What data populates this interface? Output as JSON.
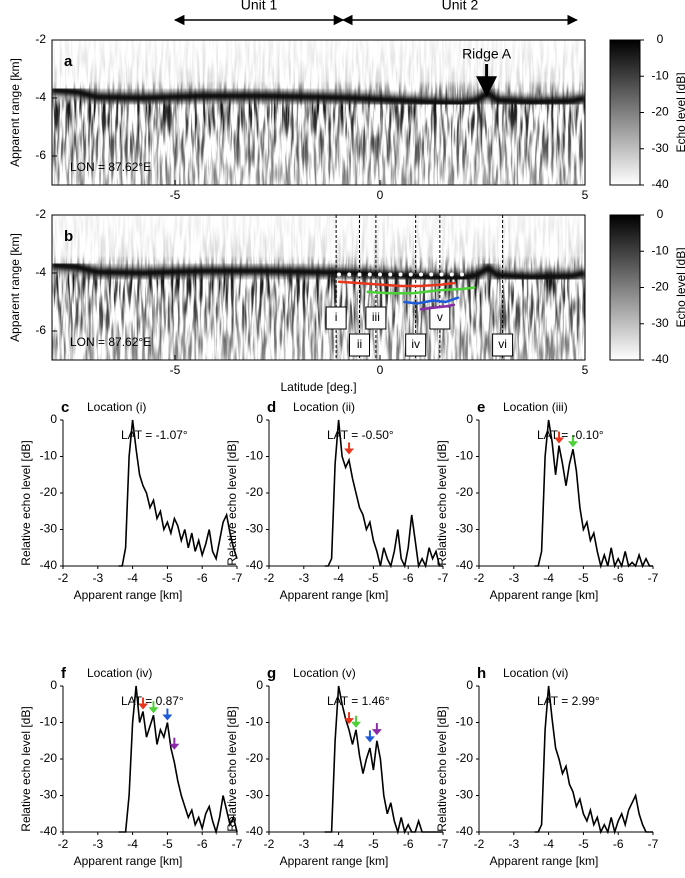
{
  "chart_data": [
    {
      "type": "radargram",
      "panel": "a",
      "ylabel": "Apparent range [km]",
      "annotation": "LON = 87.62°E",
      "xlim": [
        -8,
        5
      ],
      "ylim": [
        -2,
        -7
      ],
      "xticks": [
        -5,
        0,
        5
      ],
      "yticks": [
        -2,
        -4,
        -6
      ],
      "ridge": {
        "label": "Ridge A",
        "x": 2.6,
        "y": -3.9
      },
      "units": [
        {
          "label": "Unit 1",
          "range": [
            -5,
            -0.9
          ]
        },
        {
          "label": "Unit 2",
          "range": [
            -0.9,
            4.8
          ]
        }
      ],
      "colorbar": {
        "label": "Echo level [dB]",
        "lim": [
          0,
          -40
        ],
        "ticks": [
          0,
          -10,
          -20,
          -30,
          -40
        ]
      }
    },
    {
      "type": "radargram",
      "panel": "b",
      "ylabel": "Apparent range [km]",
      "xlabel": "Latitude [deg.]",
      "annotation": "LON = 87.62°E",
      "xlim": [
        -8,
        5
      ],
      "ylim": [
        -2,
        -7
      ],
      "xticks": [
        -5,
        0,
        5
      ],
      "yticks": [
        -2,
        -4,
        -6
      ],
      "lines": [
        -1.07,
        -0.5,
        -0.1,
        0.87,
        1.46,
        2.99
      ],
      "line_labels": [
        "i",
        "ii",
        "iii",
        "iv",
        "v",
        "vi"
      ],
      "series": [
        {
          "color": "#ffffff",
          "x": [
            -1.0,
            -0.75,
            -0.5,
            -0.25,
            0,
            0.25,
            0.5,
            0.75,
            1,
            1.25,
            1.5,
            1.75,
            2
          ],
          "values": [
            -4.05,
            -4.05,
            -4.05,
            -4.05,
            -4.05,
            -4.05,
            -4.05,
            -4.05,
            -4.05,
            -4.05,
            -4.05,
            -4.05,
            -4.05
          ]
        },
        {
          "color": "#e8361c",
          "x": [
            -1.0,
            -0.5,
            0,
            0.5,
            1,
            1.5,
            1.8
          ],
          "values": [
            -4.3,
            -4.35,
            -4.4,
            -4.45,
            -4.45,
            -4.4,
            -4.35
          ]
        },
        {
          "color": "#4cd137",
          "x": [
            -0.3,
            0.2,
            0.8,
            1.4,
            2.0,
            2.3
          ],
          "values": [
            -4.65,
            -4.7,
            -4.7,
            -4.6,
            -4.55,
            -4.5
          ]
        },
        {
          "color": "#1d5bd8",
          "x": [
            0.6,
            0.9,
            1.3,
            1.6,
            1.9
          ],
          "values": [
            -5.0,
            -5.05,
            -4.95,
            -5.0,
            -4.85
          ]
        },
        {
          "color": "#8a2aa8",
          "x": [
            1.0,
            1.3,
            1.6,
            1.8
          ],
          "values": [
            -5.25,
            -5.2,
            -5.15,
            -5.1
          ]
        }
      ],
      "colorbar": {
        "label": "Echo level [dB]",
        "lim": [
          0,
          -40
        ],
        "ticks": [
          0,
          -10,
          -20,
          -30,
          -40
        ]
      }
    },
    {
      "type": "line",
      "panel": "c",
      "title": "Location (i)",
      "annotation": "LAT = -1.07°",
      "xlabel": "Apparent range [km]",
      "ylabel": "Relative echo level [dB]",
      "xlim": [
        -2,
        -7
      ],
      "ylim": [
        -40,
        0
      ],
      "xticks": [
        -2,
        -3,
        -4,
        -5,
        -6,
        -7
      ],
      "yticks": [
        0,
        -10,
        -20,
        -30,
        -40
      ],
      "color": "#000000",
      "x": [
        -3.6,
        -3.7,
        -3.8,
        -3.9,
        -4.0,
        -4.1,
        -4.2,
        -4.3,
        -4.4,
        -4.5,
        -4.6,
        -4.7,
        -4.8,
        -4.9,
        -5.0,
        -5.1,
        -5.2,
        -5.3,
        -5.4,
        -5.5,
        -5.6,
        -5.7,
        -5.8,
        -5.9,
        -6.0,
        -6.1,
        -6.2,
        -6.3,
        -6.4,
        -6.5,
        -6.6,
        -6.7,
        -6.8,
        -6.9,
        -7.0
      ],
      "values": [
        -40,
        -40,
        -35,
        -10,
        0,
        -8,
        -15,
        -18,
        -20,
        -24,
        -22,
        -27,
        -25,
        -30,
        -28,
        -31,
        -27,
        -29,
        -33,
        -30,
        -35,
        -31,
        -36,
        -33,
        -37,
        -34,
        -30,
        -36,
        -38,
        -33,
        -28,
        -26,
        -31,
        -35,
        -38
      ],
      "arrows": []
    },
    {
      "type": "line",
      "panel": "d",
      "title": "Location (ii)",
      "annotation": "LAT = -0.50°",
      "xlabel": "Apparent range [km]",
      "ylabel": "Relative echo level [dB]",
      "xlim": [
        -2,
        -7
      ],
      "ylim": [
        -40,
        0
      ],
      "xticks": [
        -2,
        -3,
        -4,
        -5,
        -6,
        -7
      ],
      "yticks": [
        0,
        -10,
        -20,
        -30,
        -40
      ],
      "color": "#000000",
      "x": [
        -3.6,
        -3.7,
        -3.8,
        -3.9,
        -4.0,
        -4.1,
        -4.2,
        -4.3,
        -4.4,
        -4.5,
        -4.6,
        -4.7,
        -4.8,
        -4.9,
        -5.0,
        -5.1,
        -5.2,
        -5.3,
        -5.4,
        -5.5,
        -5.6,
        -5.7,
        -5.8,
        -5.9,
        -6.0,
        -6.1,
        -6.2,
        -6.3,
        -6.4,
        -6.5,
        -6.6,
        -6.7,
        -6.8,
        -6.9,
        -7.0
      ],
      "values": [
        -40,
        -40,
        -38,
        -12,
        0,
        -10,
        -13,
        -11,
        -16,
        -20,
        -24,
        -26,
        -30,
        -28,
        -33,
        -36,
        -40,
        -35,
        -38,
        -40,
        -36,
        -30,
        -38,
        -40,
        -35,
        -26,
        -33,
        -40,
        -38,
        -40,
        -35,
        -38,
        -36,
        -40,
        -40
      ],
      "arrows": [
        {
          "x": -4.3,
          "y": -10,
          "color": "#e8361c"
        }
      ]
    },
    {
      "type": "line",
      "panel": "e",
      "title": "Location (iii)",
      "annotation": "LAT = -0.10°",
      "xlabel": "Apparent range [km]",
      "ylabel": "Relative echo level [dB]",
      "xlim": [
        -2,
        -7
      ],
      "ylim": [
        -40,
        0
      ],
      "xticks": [
        -2,
        -3,
        -4,
        -5,
        -6,
        -7
      ],
      "yticks": [
        0,
        -10,
        -20,
        -30,
        -40
      ],
      "color": "#000000",
      "x": [
        -3.6,
        -3.7,
        -3.8,
        -3.9,
        -4.0,
        -4.1,
        -4.2,
        -4.3,
        -4.4,
        -4.5,
        -4.6,
        -4.7,
        -4.8,
        -4.9,
        -5.0,
        -5.1,
        -5.2,
        -5.3,
        -5.4,
        -5.5,
        -5.6,
        -5.7,
        -5.8,
        -5.9,
        -6.0,
        -6.1,
        -6.2,
        -6.3,
        -6.4,
        -6.5,
        -6.6,
        -6.7,
        -6.8,
        -6.9,
        -7.0
      ],
      "values": [
        -40,
        -40,
        -36,
        -10,
        0,
        -6,
        -15,
        -7,
        -12,
        -18,
        -12,
        -8,
        -14,
        -24,
        -30,
        -28,
        -33,
        -31,
        -36,
        -40,
        -37,
        -40,
        -35,
        -40,
        -38,
        -40,
        -36,
        -40,
        -39,
        -40,
        -37,
        -40,
        -38,
        -40,
        -40
      ],
      "arrows": [
        {
          "x": -4.3,
          "y": -7,
          "color": "#e8361c"
        },
        {
          "x": -4.7,
          "y": -8,
          "color": "#4cd137"
        }
      ]
    },
    {
      "type": "line",
      "panel": "f",
      "title": "Location (iv)",
      "annotation": "LAT = 0.87°",
      "xlabel": "Apparent range [km]",
      "ylabel": "Relative echo level [dB]",
      "xlim": [
        -2,
        -7
      ],
      "ylim": [
        -40,
        0
      ],
      "xticks": [
        -2,
        -3,
        -4,
        -5,
        -6,
        -7
      ],
      "yticks": [
        0,
        -10,
        -20,
        -30,
        -40
      ],
      "color": "#000000",
      "x": [
        -3.6,
        -3.7,
        -3.8,
        -3.9,
        -4.0,
        -4.1,
        -4.2,
        -4.3,
        -4.4,
        -4.5,
        -4.6,
        -4.7,
        -4.8,
        -4.9,
        -5.0,
        -5.1,
        -5.2,
        -5.3,
        -5.4,
        -5.5,
        -5.6,
        -5.7,
        -5.8,
        -5.9,
        -6.0,
        -6.1,
        -6.2,
        -6.3,
        -6.4,
        -6.5,
        -6.6,
        -6.7,
        -6.8,
        -6.9,
        -7.0
      ],
      "values": [
        -40,
        -40,
        -40,
        -30,
        -10,
        0,
        -10,
        -7,
        -14,
        -11,
        -8,
        -16,
        -12,
        -14,
        -10,
        -17,
        -21,
        -26,
        -30,
        -33,
        -36,
        -34,
        -38,
        -36,
        -39,
        -35,
        -33,
        -37,
        -40,
        -36,
        -30,
        -34,
        -38,
        -36,
        -40
      ],
      "arrows": [
        {
          "x": -4.3,
          "y": -7,
          "color": "#e8361c"
        },
        {
          "x": -4.6,
          "y": -8,
          "color": "#4cd137"
        },
        {
          "x": -5.0,
          "y": -10,
          "color": "#1d5bd8"
        },
        {
          "x": -5.2,
          "y": -18,
          "color": "#8a2aa8"
        }
      ]
    },
    {
      "type": "line",
      "panel": "g",
      "title": "Location (v)",
      "annotation": "LAT = 1.46°",
      "xlabel": "Apparent range [km]",
      "ylabel": "Relative echo level [dB]",
      "xlim": [
        -2,
        -7
      ],
      "ylim": [
        -40,
        0
      ],
      "xticks": [
        -2,
        -3,
        -4,
        -5,
        -6,
        -7
      ],
      "yticks": [
        0,
        -10,
        -20,
        -30,
        -40
      ],
      "color": "#000000",
      "x": [
        -3.6,
        -3.7,
        -3.8,
        -3.9,
        -4.0,
        -4.1,
        -4.2,
        -4.3,
        -4.4,
        -4.5,
        -4.6,
        -4.7,
        -4.8,
        -4.9,
        -5.0,
        -5.1,
        -5.2,
        -5.3,
        -5.4,
        -5.5,
        -5.6,
        -5.7,
        -5.8,
        -5.9,
        -6.0,
        -6.1,
        -6.2,
        -6.3,
        -6.4,
        -6.5,
        -6.6,
        -6.7,
        -6.8,
        -6.9,
        -7.0
      ],
      "values": [
        -40,
        -40,
        -40,
        -15,
        0,
        -5,
        -9,
        -12,
        -16,
        -12,
        -19,
        -24,
        -20,
        -17,
        -23,
        -15,
        -20,
        -30,
        -35,
        -32,
        -37,
        -40,
        -36,
        -40,
        -38,
        -40,
        -40,
        -37,
        -40,
        -40,
        -40,
        -40,
        -40,
        -40,
        -40
      ],
      "arrows": [
        {
          "x": -4.3,
          "y": -11,
          "color": "#e8361c"
        },
        {
          "x": -4.5,
          "y": -12,
          "color": "#4cd137"
        },
        {
          "x": -4.9,
          "y": -16,
          "color": "#1d5bd8"
        },
        {
          "x": -5.1,
          "y": -14,
          "color": "#8a2aa8"
        }
      ]
    },
    {
      "type": "line",
      "panel": "h",
      "title": "Location (vi)",
      "annotation": "LAT = 2.99°",
      "xlabel": "Apparent range [km]",
      "ylabel": "Relative echo level [dB]",
      "xlim": [
        -2,
        -7
      ],
      "ylim": [
        -40,
        0
      ],
      "xticks": [
        -2,
        -3,
        -4,
        -5,
        -6,
        -7
      ],
      "yticks": [
        0,
        -10,
        -20,
        -30,
        -40
      ],
      "color": "#000000",
      "x": [
        -3.6,
        -3.7,
        -3.8,
        -3.9,
        -4.0,
        -4.1,
        -4.2,
        -4.3,
        -4.4,
        -4.5,
        -4.6,
        -4.7,
        -4.8,
        -4.9,
        -5.0,
        -5.1,
        -5.2,
        -5.3,
        -5.4,
        -5.5,
        -5.6,
        -5.7,
        -5.8,
        -5.9,
        -6.0,
        -6.1,
        -6.2,
        -6.3,
        -6.4,
        -6.5,
        -6.6,
        -6.7,
        -6.8,
        -6.9,
        -7.0
      ],
      "values": [
        -40,
        -40,
        -38,
        -12,
        0,
        -9,
        -17,
        -20,
        -24,
        -22,
        -27,
        -29,
        -33,
        -31,
        -35,
        -37,
        -34,
        -38,
        -36,
        -40,
        -38,
        -40,
        -36,
        -40,
        -37,
        -35,
        -38,
        -34,
        -32,
        -30,
        -35,
        -38,
        -40,
        -40,
        -40
      ],
      "arrows": []
    }
  ]
}
